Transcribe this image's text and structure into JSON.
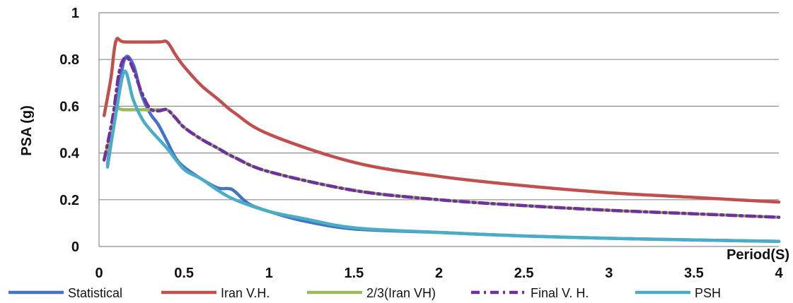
{
  "chart_data": {
    "type": "line",
    "title": "",
    "xlabel": "Period(S)",
    "ylabel": "PSA (g)",
    "xlim": [
      0,
      4
    ],
    "ylim": [
      0,
      1
    ],
    "x_ticks": [
      "0",
      "0.5",
      "1",
      "1.5",
      "2",
      "2.5",
      "3",
      "3.5",
      "4"
    ],
    "y_ticks": [
      "0",
      "0.2",
      "0.4",
      "0.6",
      "0.8",
      "1"
    ],
    "grid": "horizontal",
    "legend_position": "bottom",
    "series": [
      {
        "name": "Statistical",
        "color": "#4472C4",
        "dash": "solid",
        "points": [
          [
            0.05,
            0.35
          ],
          [
            0.1,
            0.6
          ],
          [
            0.15,
            0.8
          ],
          [
            0.2,
            0.78
          ],
          [
            0.25,
            0.65
          ],
          [
            0.3,
            0.57
          ],
          [
            0.35,
            0.52
          ],
          [
            0.4,
            0.45
          ],
          [
            0.45,
            0.38
          ],
          [
            0.5,
            0.34
          ],
          [
            0.6,
            0.29
          ],
          [
            0.7,
            0.25
          ],
          [
            0.78,
            0.245
          ],
          [
            0.85,
            0.2
          ],
          [
            0.9,
            0.175
          ],
          [
            1,
            0.15
          ],
          [
            1.2,
            0.11
          ],
          [
            1.5,
            0.075
          ],
          [
            2,
            0.06
          ],
          [
            2.5,
            0.045
          ],
          [
            3,
            0.035
          ],
          [
            3.5,
            0.028
          ],
          [
            4,
            0.022
          ]
        ]
      },
      {
        "name": "Iran V.H.",
        "color": "#C0504D",
        "dash": "solid",
        "points": [
          [
            0.03,
            0.56
          ],
          [
            0.07,
            0.72
          ],
          [
            0.1,
            0.88
          ],
          [
            0.15,
            0.875
          ],
          [
            0.35,
            0.875
          ],
          [
            0.4,
            0.875
          ],
          [
            0.45,
            0.82
          ],
          [
            0.5,
            0.77
          ],
          [
            0.6,
            0.69
          ],
          [
            0.7,
            0.63
          ],
          [
            0.8,
            0.57
          ],
          [
            1,
            0.48
          ],
          [
            1.5,
            0.36
          ],
          [
            2,
            0.3
          ],
          [
            2.5,
            0.26
          ],
          [
            3,
            0.23
          ],
          [
            3.5,
            0.21
          ],
          [
            4,
            0.19
          ]
        ]
      },
      {
        "name": "2/3(Iran VH)",
        "color": "#9BBB59",
        "dash": "solid",
        "points": [
          [
            0.03,
            0.37
          ],
          [
            0.07,
            0.48
          ],
          [
            0.1,
            0.585
          ],
          [
            0.15,
            0.585
          ],
          [
            0.35,
            0.585
          ],
          [
            0.4,
            0.585
          ],
          [
            0.45,
            0.55
          ],
          [
            0.5,
            0.51
          ],
          [
            0.6,
            0.46
          ],
          [
            0.7,
            0.42
          ],
          [
            0.8,
            0.38
          ],
          [
            1,
            0.32
          ],
          [
            1.5,
            0.24
          ],
          [
            2,
            0.2
          ],
          [
            2.5,
            0.175
          ],
          [
            3,
            0.155
          ],
          [
            3.5,
            0.14
          ],
          [
            4,
            0.125
          ]
        ]
      },
      {
        "name": "Final V. H.",
        "color": "#7030A0",
        "dash": "dashdot",
        "points": [
          [
            0.03,
            0.37
          ],
          [
            0.08,
            0.55
          ],
          [
            0.12,
            0.75
          ],
          [
            0.16,
            0.81
          ],
          [
            0.2,
            0.76
          ],
          [
            0.25,
            0.66
          ],
          [
            0.3,
            0.59
          ],
          [
            0.35,
            0.58
          ],
          [
            0.4,
            0.585
          ],
          [
            0.45,
            0.55
          ],
          [
            0.5,
            0.51
          ],
          [
            0.6,
            0.46
          ],
          [
            0.7,
            0.42
          ],
          [
            0.8,
            0.38
          ],
          [
            1,
            0.32
          ],
          [
            1.5,
            0.24
          ],
          [
            2,
            0.2
          ],
          [
            2.5,
            0.175
          ],
          [
            3,
            0.155
          ],
          [
            3.5,
            0.14
          ],
          [
            4,
            0.125
          ]
        ]
      },
      {
        "name": "PSH",
        "color": "#4BACC6",
        "dash": "solid",
        "points": [
          [
            0.05,
            0.34
          ],
          [
            0.1,
            0.57
          ],
          [
            0.15,
            0.75
          ],
          [
            0.2,
            0.63
          ],
          [
            0.25,
            0.55
          ],
          [
            0.3,
            0.5
          ],
          [
            0.4,
            0.42
          ],
          [
            0.5,
            0.33
          ],
          [
            0.6,
            0.29
          ],
          [
            0.7,
            0.24
          ],
          [
            0.8,
            0.2
          ],
          [
            1,
            0.15
          ],
          [
            1.2,
            0.12
          ],
          [
            1.5,
            0.08
          ],
          [
            2,
            0.06
          ],
          [
            2.5,
            0.045
          ],
          [
            3,
            0.035
          ],
          [
            3.5,
            0.028
          ],
          [
            4,
            0.022
          ]
        ]
      }
    ]
  }
}
